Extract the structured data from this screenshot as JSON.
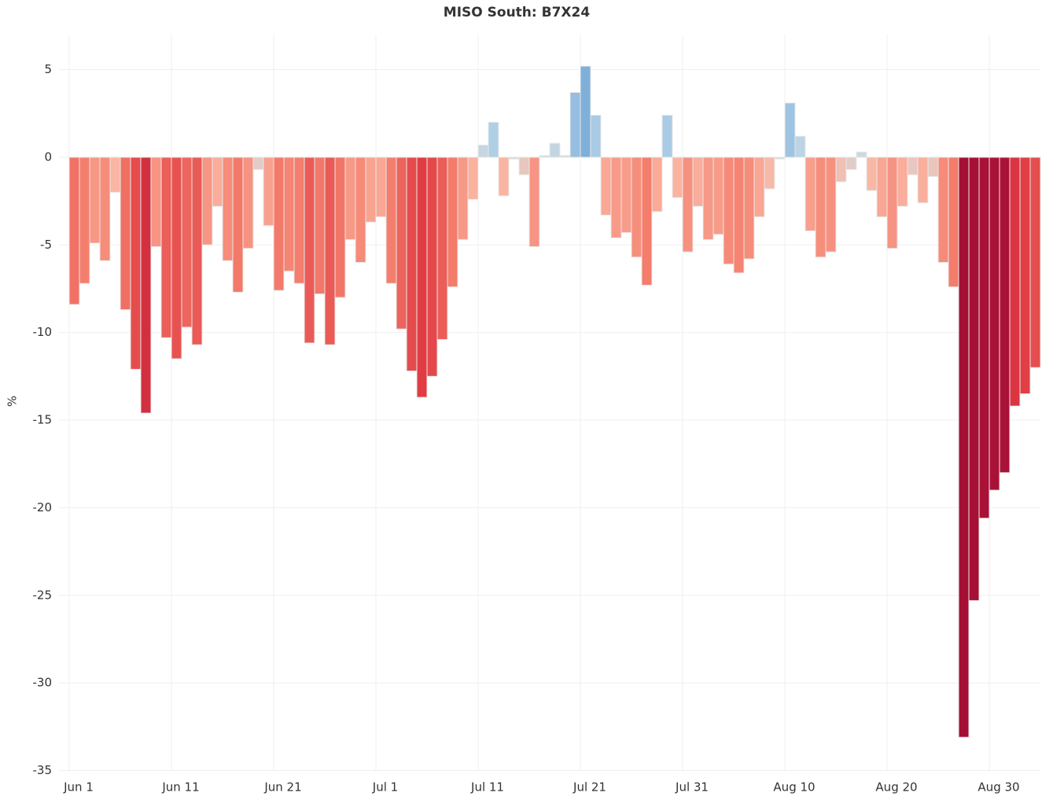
{
  "chart_data": {
    "type": "bar",
    "title": "MISO South: B7X24",
    "y_label": "%",
    "categories": [
      "Jun 1",
      null,
      null,
      null,
      null,
      null,
      null,
      null,
      null,
      null,
      "Jun 11",
      null,
      null,
      null,
      null,
      null,
      null,
      null,
      null,
      null,
      "Jun 21",
      null,
      null,
      null,
      null,
      null,
      null,
      null,
      null,
      null,
      "Jul 1",
      null,
      null,
      null,
      null,
      null,
      null,
      null,
      null,
      null,
      "Jul 11",
      null,
      null,
      null,
      null,
      null,
      null,
      null,
      null,
      null,
      "Jul 21",
      null,
      null,
      null,
      null,
      null,
      null,
      null,
      null,
      null,
      "Jul 31",
      null,
      null,
      null,
      null,
      null,
      null,
      null,
      null,
      null,
      "Aug 10",
      null,
      null,
      null,
      null,
      null,
      null,
      null,
      null,
      null,
      "Aug 20",
      null,
      null,
      null,
      null,
      null,
      null,
      null,
      null,
      null,
      "Aug 30",
      null,
      null,
      null,
      null
    ],
    "values": [
      -8.4,
      -7.2,
      -4.9,
      -5.9,
      -2.0,
      -8.7,
      -12.1,
      -14.6,
      -5.1,
      -10.3,
      -11.5,
      -9.7,
      -10.7,
      -5.0,
      -2.8,
      -5.9,
      -7.7,
      -5.2,
      -0.7,
      -3.9,
      -7.6,
      -6.5,
      -7.2,
      -10.6,
      -7.8,
      -10.7,
      -8.0,
      -4.7,
      -6.0,
      -3.7,
      -3.4,
      -7.2,
      -9.8,
      -12.2,
      -13.7,
      -12.5,
      -10.4,
      -7.4,
      -4.7,
      -2.4,
      0.7,
      2.0,
      -2.2,
      -0.1,
      -1.0,
      -5.1,
      0.1,
      0.8,
      0.1,
      3.7,
      5.2,
      2.4,
      -3.3,
      -4.6,
      -4.3,
      -5.7,
      -7.3,
      -3.1,
      2.4,
      -2.3,
      -5.4,
      -2.8,
      -4.7,
      -4.4,
      -6.1,
      -6.6,
      -5.8,
      -3.4,
      -1.8,
      -0.1,
      3.1,
      1.2,
      -4.2,
      -5.7,
      -5.4,
      -1.4,
      -0.7,
      0.3,
      -1.9,
      -3.4,
      -5.2,
      -2.8,
      -1.0,
      -2.6,
      -1.1,
      -6.0,
      -7.4,
      -33.1,
      -25.3,
      -20.6,
      -19.0,
      -18.0,
      -14.2,
      -13.5,
      -12.0
    ],
    "negative_colors": [
      "#d3d8dc",
      "#fbb6a3",
      "#f47d6c",
      "#e03a42",
      "#aa1238",
      "#a50f33"
    ],
    "positive_colors": [
      "#d3d8dc",
      "#b6d3e8",
      "#7eb0da"
    ],
    "ylim": [
      -35,
      7
    ],
    "yticks": [
      5,
      0,
      -5,
      -10,
      -15,
      -20,
      -25,
      -30,
      -35
    ],
    "grid": true
  }
}
